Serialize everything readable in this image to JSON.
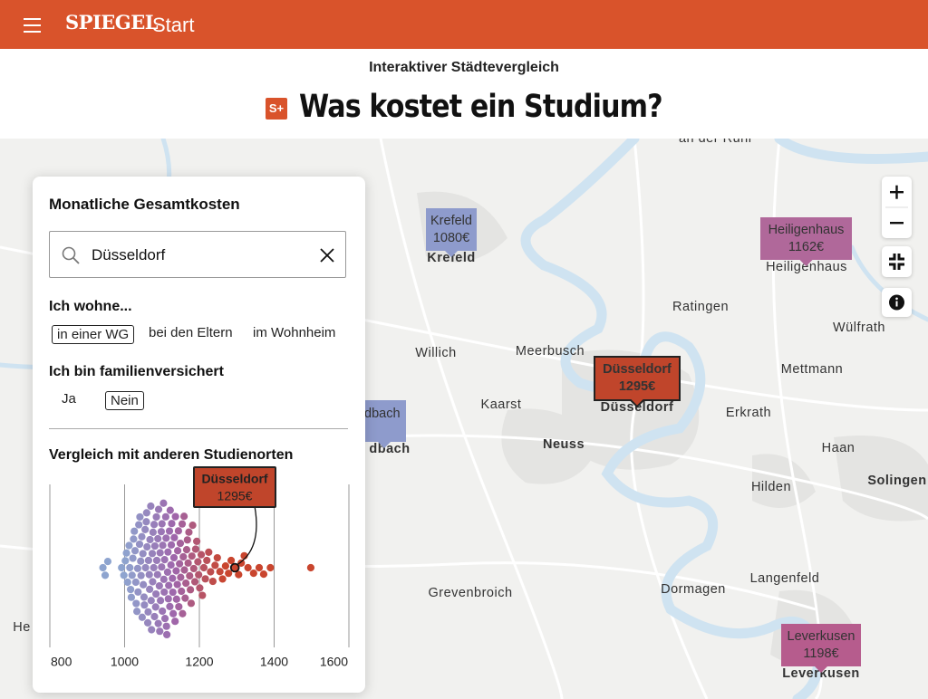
{
  "header": {
    "logo": "SPIEGEL",
    "section": "Start"
  },
  "kicker": "Interaktiver Städtevergleich",
  "badge": "S+",
  "title": "Was kostet ein Studium?",
  "panel": {
    "heading": "Monatliche Gesamtkosten",
    "search": "Düsseldorf",
    "living": {
      "label": "Ich wohne...",
      "options": [
        "in einer WG",
        "bei den Eltern",
        "im Wohnheim"
      ],
      "selected": 0
    },
    "insured": {
      "label": "Ich bin familienversichert",
      "options": [
        "Ja",
        "Nein"
      ],
      "selected": 1
    },
    "comparison": "Vergleich mit anderen Studienorten"
  },
  "chart_data": {
    "type": "beeswarm",
    "values": [
      942,
      948,
      955,
      992,
      998,
      1002,
      1005,
      1008,
      1012,
      1014,
      1016,
      1018,
      1020,
      1022,
      1024,
      1026,
      1028,
      1030,
      1031,
      1033,
      1035,
      1036,
      1038,
      1040,
      1041,
      1043,
      1044,
      1046,
      1047,
      1049,
      1050,
      1052,
      1053,
      1055,
      1056,
      1058,
      1059,
      1060,
      1062,
      1063,
      1064,
      1066,
      1067,
      1068,
      1070,
      1071,
      1072,
      1074,
      1075,
      1076,
      1078,
      1079,
      1080,
      1081,
      1083,
      1084,
      1085,
      1086,
      1088,
      1089,
      1090,
      1091,
      1093,
      1094,
      1095,
      1096,
      1098,
      1099,
      1100,
      1101,
      1102,
      1104,
      1105,
      1106,
      1107,
      1108,
      1110,
      1111,
      1112,
      1113,
      1115,
      1116,
      1117,
      1118,
      1120,
      1121,
      1122,
      1124,
      1125,
      1126,
      1128,
      1129,
      1130,
      1132,
      1133,
      1135,
      1136,
      1138,
      1139,
      1141,
      1142,
      1144,
      1145,
      1147,
      1149,
      1150,
      1152,
      1154,
      1155,
      1157,
      1159,
      1160,
      1162,
      1164,
      1166,
      1168,
      1170,
      1172,
      1174,
      1176,
      1178,
      1180,
      1182,
      1185,
      1188,
      1190,
      1193,
      1196,
      1198,
      1201,
      1205,
      1208,
      1212,
      1216,
      1220,
      1225,
      1230,
      1236,
      1242,
      1248,
      1255,
      1262,
      1270,
      1278,
      1285,
      1295,
      1305,
      1312,
      1320,
      1330,
      1345,
      1360,
      1372,
      1390,
      1498
    ],
    "colors": [
      "#8ea4cf",
      "#9f66ab",
      "#c9452e",
      "#c9452e"
    ],
    "xlim": [
      800,
      1600
    ],
    "xticks": [
      800,
      1000,
      1200,
      1400,
      1600
    ],
    "grid": true,
    "highlight": {
      "name": "Düsseldorf",
      "value": 1295,
      "value_label": "1295€"
    }
  },
  "map": {
    "places": [
      "an der Ruhr",
      "Krefeld",
      "Heiligenhaus",
      "Ratingen",
      "Wülfrath",
      "Willich",
      "Meerbusch",
      "Mettmann",
      "Kaarst",
      "Düsseldorf",
      "Erkrath",
      "Neuss",
      "Haan",
      "Solingen",
      "Hilden",
      "Langenfeld",
      "Grevenbroich",
      "Dormagen",
      "Leverkusen",
      "dbach",
      "He"
    ],
    "markers": [
      {
        "name": "Krefeld",
        "cost": "1080€",
        "color": "#8e9bcc"
      },
      {
        "name": "Heiligenhaus",
        "cost": "1162€",
        "color": "#b0689a"
      },
      {
        "name": "Düsseldorf",
        "cost": "1295€",
        "color": "#c0452b"
      },
      {
        "name": "Leverkusen",
        "cost": "1198€",
        "color": "#b65c8d"
      },
      {
        "name": "dbach",
        "color": "#8e9bcc"
      }
    ]
  }
}
